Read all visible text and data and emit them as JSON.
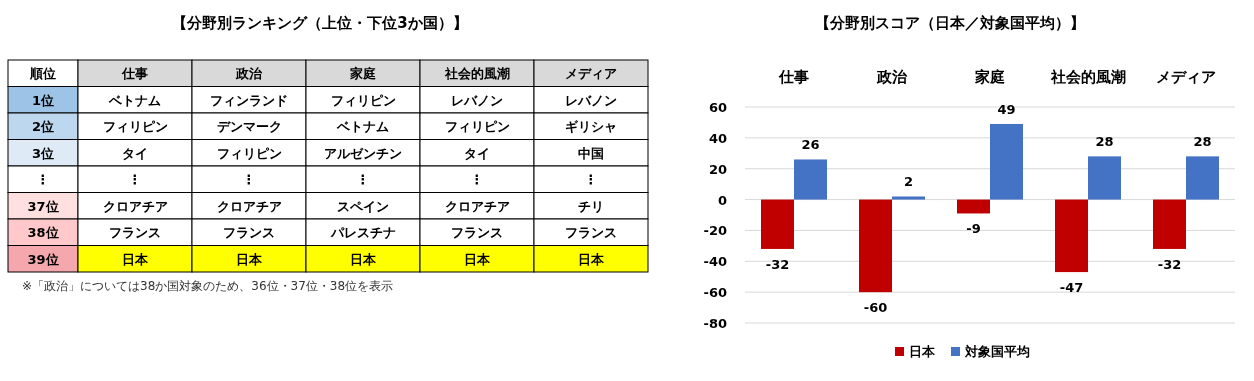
{
  "chart_data": [
    {
      "type": "other",
      "title": "【分野別ランキング（上位・下位3か国）】",
      "ylabel": "順位",
      "categories": [
        "仕事",
        "政治",
        "家庭",
        "社会的風潮",
        "メディア"
      ],
      "y_categories": [
        "1位",
        "2位",
        "3位",
        "⋮",
        "37位",
        "38位",
        "39位"
      ],
      "cell_labels": [
        [
          "ベトナム",
          "フィンランド",
          "フィリピン",
          "レバノン",
          "レバノン"
        ],
        [
          "フィリピン",
          "デンマーク",
          "ベトナム",
          "フィリピン",
          "ギリシャ"
        ],
        [
          "タイ",
          "フィリピン",
          "アルゼンチン",
          "タイ",
          "中国"
        ],
        [
          "⋮",
          "⋮",
          "⋮",
          "⋮",
          "⋮"
        ],
        [
          "クロアチア",
          "クロアチア",
          "スペイン",
          "クロアチア",
          "チリ"
        ],
        [
          "フランス",
          "フランス",
          "パレスチナ",
          "フランス",
          "フランス"
        ],
        [
          "日本",
          "日本",
          "日本",
          "日本",
          "日本"
        ]
      ],
      "annotations": [
        "※「政治」については38か国対象のため、36位・37位・38位を表示"
      ]
    },
    {
      "type": "bar",
      "title": "【分野別スコア（日本／対象国平均）】",
      "categories": [
        "仕事",
        "政治",
        "家庭",
        "社会的風潮",
        "メディア"
      ],
      "series": [
        {
          "name": "日本",
          "color": "#c00000",
          "values": [
            -32,
            -60,
            -9,
            -47,
            -32
          ]
        },
        {
          "name": "対象国平均",
          "color": "#4472c4",
          "values": [
            26,
            2,
            49,
            28,
            28
          ]
        }
      ],
      "ylim": [
        -80,
        60
      ],
      "yticks": [
        -80,
        -60,
        -40,
        -20,
        0,
        20,
        40,
        60
      ],
      "grid": "y",
      "legend": "bottom",
      "data_labels": true
    }
  ]
}
